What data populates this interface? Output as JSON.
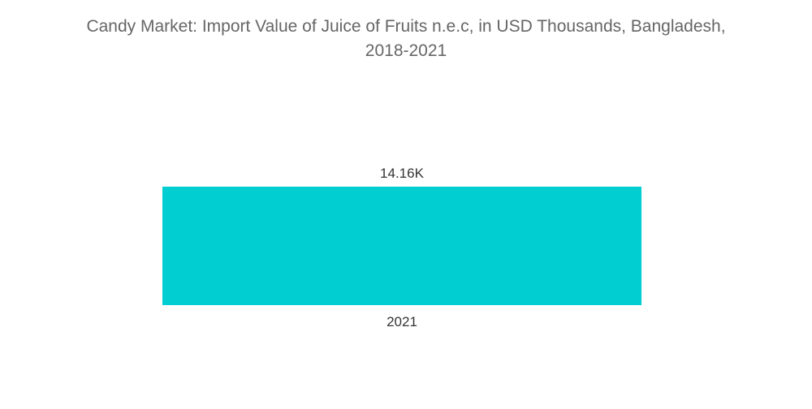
{
  "chart_data": {
    "type": "bar",
    "title_lines": [
      "Candy Market: Import Value of Juice of Fruits n.e.c, in USD Thousands, Bangladesh,",
      "2018-2021"
    ],
    "categories": [
      "2021"
    ],
    "values": [
      14.16
    ],
    "value_labels": [
      "14.16K"
    ],
    "ylim": [
      0,
      14.16
    ],
    "grid": false,
    "legend": "none",
    "bar_color": "#00CED1"
  }
}
